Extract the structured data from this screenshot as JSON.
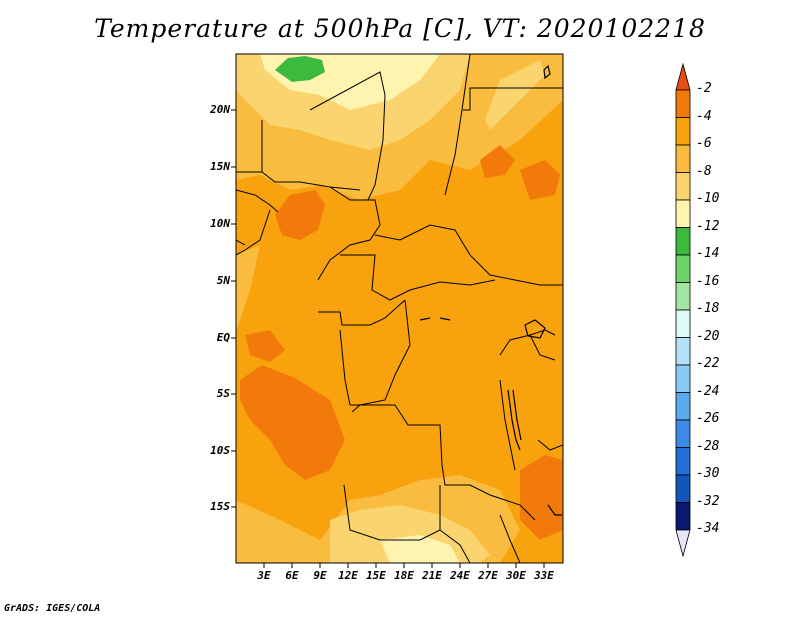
{
  "title": "Temperature at 500hPa [C], VT: 2020102218",
  "footer": "GrADS: IGES/COLA",
  "lat_labels": [
    "20N",
    "15N",
    "10N",
    "5N",
    "EQ",
    "5S",
    "10S",
    "15S"
  ],
  "lon_labels": [
    "3E",
    "6E",
    "9E",
    "12E",
    "15E",
    "18E",
    "21E",
    "24E",
    "27E",
    "30E",
    "33E"
  ],
  "colorbar": {
    "labels": [
      "-2",
      "-4",
      "-6",
      "-8",
      "-10",
      "-12",
      "-14",
      "-16",
      "-18",
      "-20",
      "-22",
      "-24",
      "-26",
      "-28",
      "-30",
      "-32",
      "-34"
    ],
    "colors": [
      "#e84e10",
      "#f27a0b",
      "#f8a20e",
      "#fabc3e",
      "#fad56f",
      "#fff3b0",
      "#3cba3c",
      "#6dd36d",
      "#a0e6a0",
      "#e0fbf5",
      "#b4e1f8",
      "#8ccaf4",
      "#5aaaee",
      "#3d8be6",
      "#226fd8",
      "#1254b8",
      "#0a1870"
    ]
  },
  "map": {
    "colors": {
      "yellow_pale": "#fff3b0",
      "yellow": "#fad56f",
      "light_orange": "#fabc3e",
      "orange": "#f8a20e",
      "dark_orange": "#f27a0b",
      "red_orange": "#e84e10",
      "green": "#3cba3c"
    }
  }
}
